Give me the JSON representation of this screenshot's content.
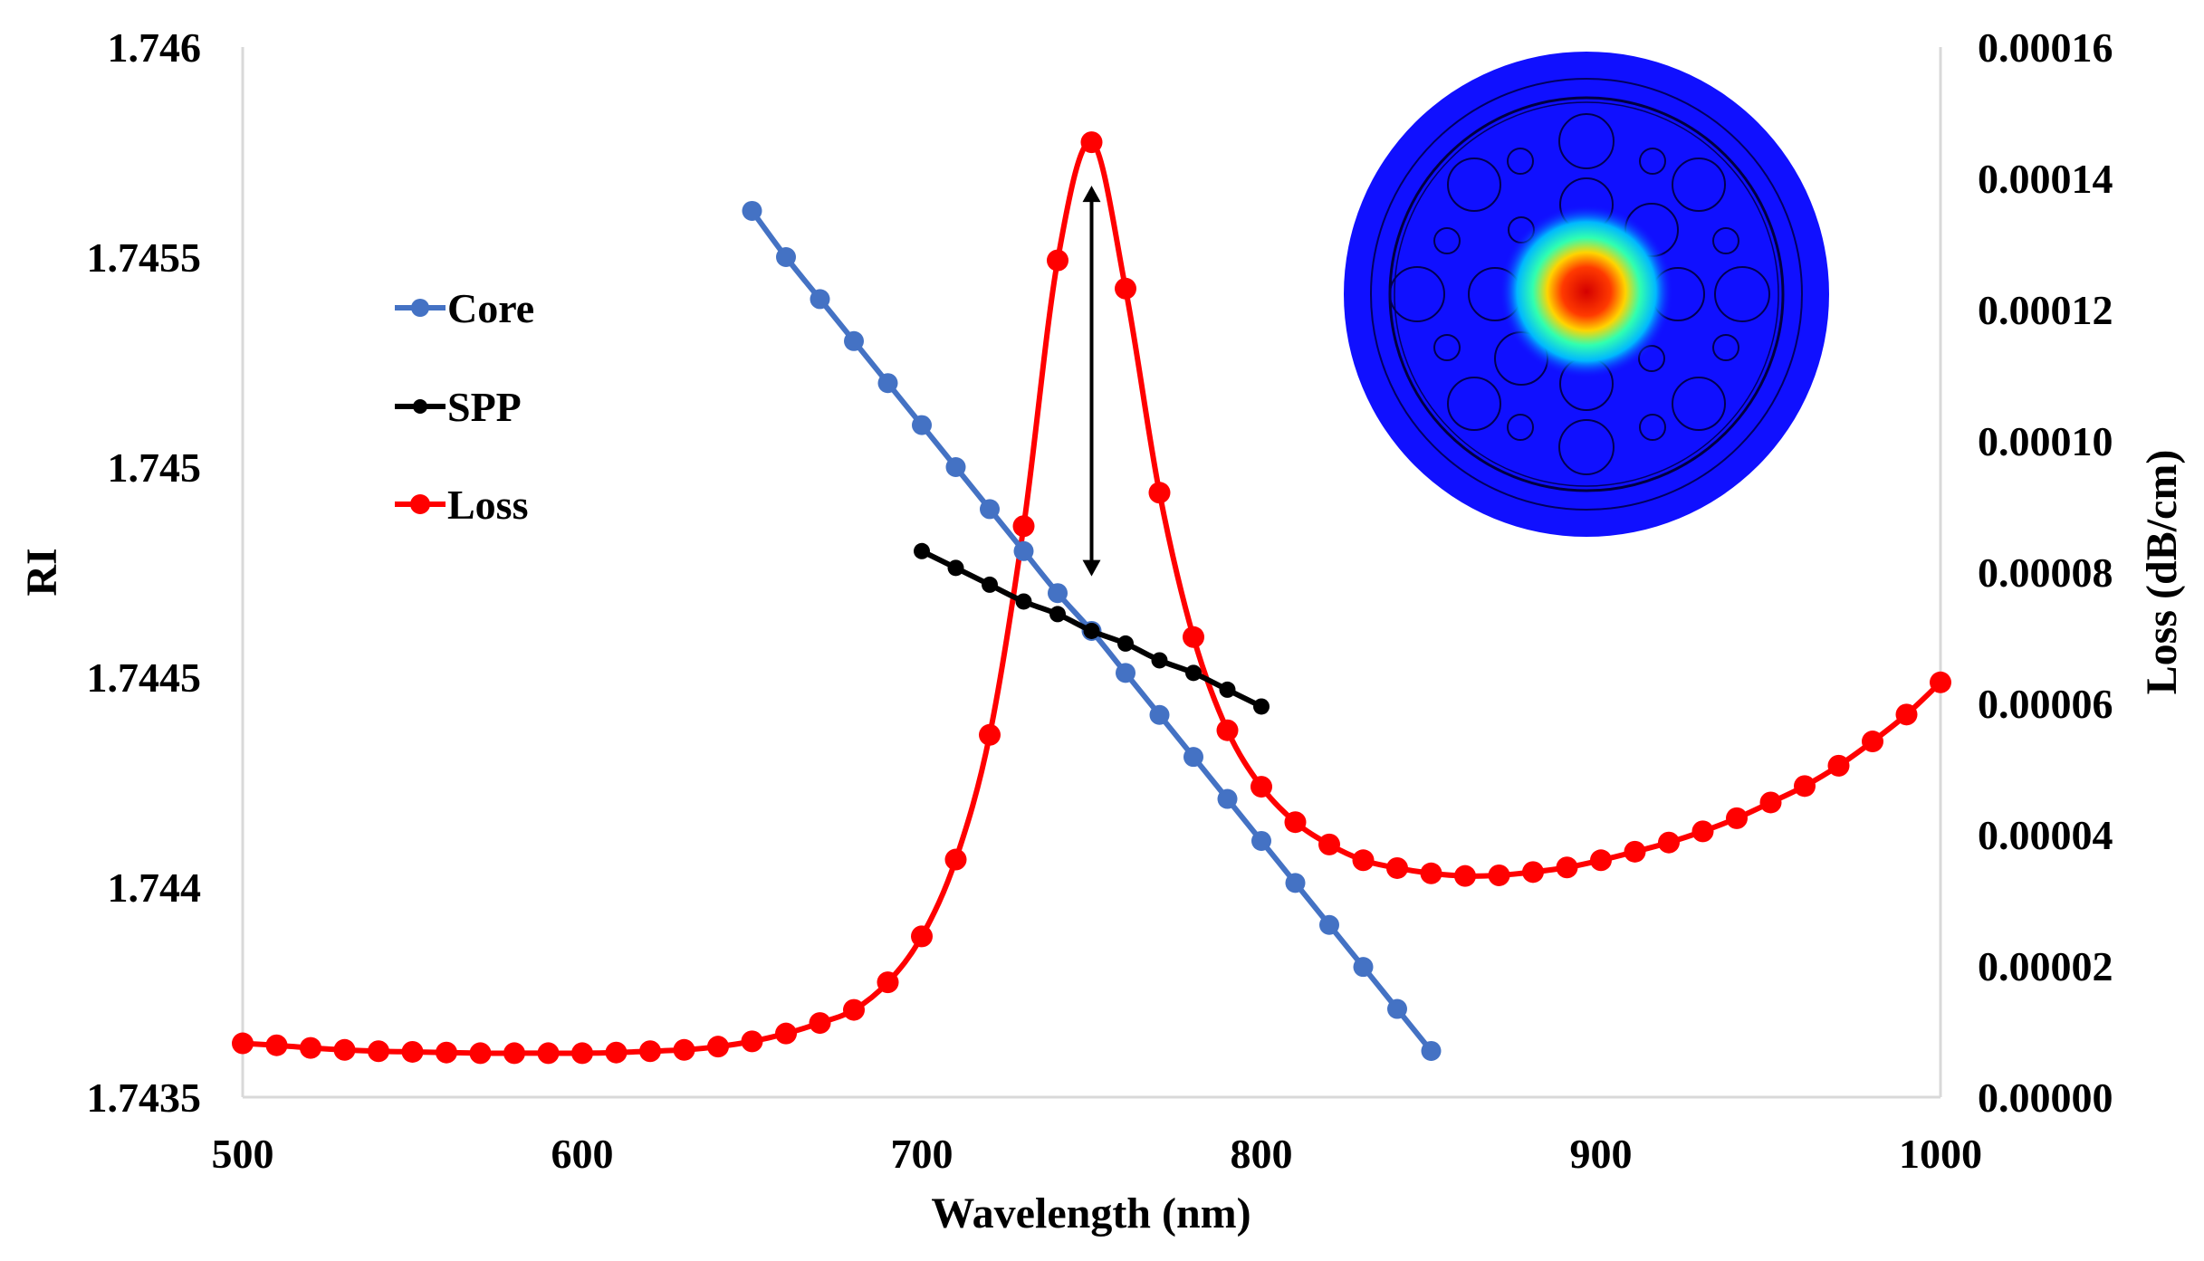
{
  "chart_data": {
    "type": "line",
    "title": "",
    "xlabel": "Wavelength (nm)",
    "ylabel": "RI",
    "y2label": "Loss (dB/cm)",
    "xlim": [
      500,
      1000
    ],
    "ylim": [
      1.7435,
      1.746
    ],
    "y2lim": [
      0,
      0.00016
    ],
    "x_ticks": [
      500,
      600,
      700,
      800,
      900,
      1000
    ],
    "x_tick_labels": [
      "500",
      "600",
      "700",
      "800",
      "900",
      "1000"
    ],
    "y_ticks": [
      1.7435,
      1.744,
      1.7445,
      1.745,
      1.7455,
      1.746
    ],
    "y_tick_labels": [
      "1.7435",
      "1.744",
      "1.7445",
      "1.745",
      "1.7455",
      "1.746"
    ],
    "y2_ticks": [
      0,
      2e-05,
      4e-05,
      6e-05,
      8e-05,
      0.0001,
      0.00012,
      0.00014,
      0.00016
    ],
    "y2_tick_labels": [
      "0.00000",
      "0.00002",
      "0.00004",
      "0.00006",
      "0.00008",
      "0.00010",
      "0.00012",
      "0.00014",
      "0.00016"
    ],
    "grid": false,
    "legend_position": "left",
    "series": [
      {
        "name": "Core",
        "axis": "left",
        "color": "#4472C4",
        "x": [
          650,
          660,
          670,
          680,
          690,
          700,
          710,
          720,
          730,
          740,
          750,
          760,
          770,
          780,
          790,
          800,
          810,
          820,
          830,
          840,
          850
        ],
        "values": [
          1.74561,
          1.7455,
          1.7454,
          1.7453,
          1.7452,
          1.7451,
          1.745,
          1.7449,
          1.7448,
          1.7447,
          1.74461,
          1.74451,
          1.74441,
          1.74431,
          1.74421,
          1.74411,
          1.74401,
          1.74391,
          1.74381,
          1.74371,
          1.74361
        ]
      },
      {
        "name": "SPP",
        "axis": "left",
        "color": "#000000",
        "x": [
          700,
          710,
          720,
          730,
          740,
          750,
          760,
          770,
          780,
          790,
          800
        ],
        "values": [
          1.7448,
          1.74476,
          1.74472,
          1.74468,
          1.74465,
          1.74461,
          1.74458,
          1.74454,
          1.74451,
          1.74447,
          1.74443
        ]
      },
      {
        "name": "Loss",
        "axis": "right",
        "color": "#FF0000",
        "x": [
          500,
          510,
          520,
          530,
          540,
          550,
          560,
          570,
          580,
          590,
          600,
          610,
          620,
          630,
          640,
          650,
          660,
          670,
          680,
          690,
          700,
          710,
          720,
          730,
          740,
          750,
          760,
          770,
          780,
          790,
          800,
          810,
          820,
          830,
          840,
          850,
          860,
          870,
          880,
          890,
          900,
          910,
          920,
          930,
          940,
          950,
          960,
          970,
          980,
          990,
          1000
        ],
        "values": [
          8.2e-06,
          7.9e-06,
          7.5e-06,
          7.2e-06,
          7e-06,
          6.9e-06,
          6.8e-06,
          6.7e-06,
          6.7e-06,
          6.7e-06,
          6.7e-06,
          6.8e-06,
          7e-06,
          7.2e-06,
          7.7e-06,
          8.5e-06,
          9.7e-06,
          1.13e-05,
          1.33e-05,
          1.75e-05,
          2.45e-05,
          3.62e-05,
          5.52e-05,
          8.7e-05,
          0.0001275,
          0.0001455,
          0.0001232,
          9.21e-05,
          7.01e-05,
          5.59e-05,
          4.73e-05,
          4.19e-05,
          3.85e-05,
          3.61e-05,
          3.49e-05,
          3.41e-05,
          3.37e-05,
          3.38e-05,
          3.43e-05,
          3.5e-05,
          3.61e-05,
          3.74e-05,
          3.88e-05,
          4.05e-05,
          4.25e-05,
          4.49e-05,
          4.74e-05,
          5.05e-05,
          5.42e-05,
          5.83e-05,
          6.32e-05
        ]
      }
    ],
    "annotations": [
      {
        "type": "double-arrow",
        "x": 750,
        "from": 1.74474,
        "to": 1.74567
      },
      {
        "type": "inset-mode-image",
        "description_label": "fiber-mode-profile"
      }
    ]
  }
}
